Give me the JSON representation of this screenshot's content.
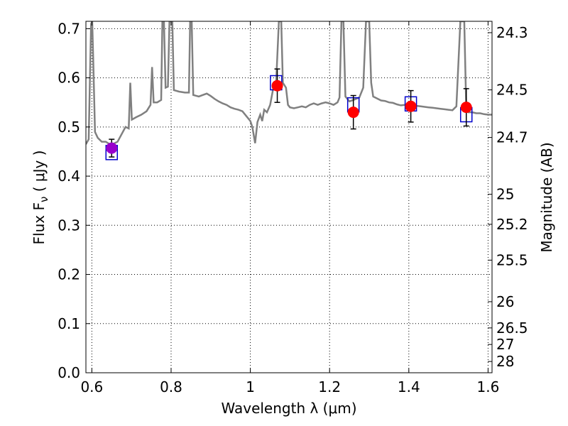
{
  "chart_data": {
    "type": "scatter",
    "xlabel": "Wavelength  λ (μm)",
    "ylabel": "Flux  F",
    "ylabel_sub": "ν",
    "ylabel_unit": "  ( μJy )",
    "ylabel_right": "Magnitude (AB)",
    "xlim": [
      0.585,
      1.61
    ],
    "ylim": [
      0.0,
      0.715
    ],
    "x_ticks": [
      {
        "value": 0.6,
        "label": "0.6"
      },
      {
        "value": 0.8,
        "label": "0.8"
      },
      {
        "value": 1.0,
        "label": "1"
      },
      {
        "value": 1.2,
        "label": "1.2"
      },
      {
        "value": 1.4,
        "label": "1.4"
      },
      {
        "value": 1.6,
        "label": "1.6"
      }
    ],
    "y_ticks": [
      {
        "value": 0.0,
        "label": "0.0"
      },
      {
        "value": 0.1,
        "label": "0.1"
      },
      {
        "value": 0.2,
        "label": "0.2"
      },
      {
        "value": 0.3,
        "label": "0.3"
      },
      {
        "value": 0.4,
        "label": "0.4"
      },
      {
        "value": 0.5,
        "label": "0.5"
      },
      {
        "value": 0.6,
        "label": "0.6"
      },
      {
        "value": 0.7,
        "label": "0.7"
      }
    ],
    "right_ticks": [
      {
        "value": 24.3,
        "label": "24.3"
      },
      {
        "value": 24.5,
        "label": "24.5"
      },
      {
        "value": 24.7,
        "label": "24.7"
      },
      {
        "value": 25.0,
        "label": "25"
      },
      {
        "value": 25.2,
        "label": "25.2"
      },
      {
        "value": 25.5,
        "label": "25.5"
      },
      {
        "value": 26.0,
        "label": "26"
      },
      {
        "value": 26.5,
        "label": "26.5"
      },
      {
        "value": 27.0,
        "label": "27"
      },
      {
        "value": 28.0,
        "label": "28"
      }
    ],
    "grid": true,
    "colors": {
      "model": "#808080",
      "observed": "#ff0000",
      "observed_first": "#9900cc",
      "model_box": "#0000cc",
      "errorbar": "#000000"
    },
    "model_spectrum": [
      [
        0.585,
        0.465
      ],
      [
        0.592,
        0.475
      ],
      [
        0.598,
        0.71
      ],
      [
        0.601,
        0.715
      ],
      [
        0.604,
        0.62
      ],
      [
        0.608,
        0.49
      ],
      [
        0.615,
        0.478
      ],
      [
        0.625,
        0.47
      ],
      [
        0.635,
        0.47
      ],
      [
        0.645,
        0.465
      ],
      [
        0.655,
        0.466
      ],
      [
        0.665,
        0.47
      ],
      [
        0.675,
        0.485
      ],
      [
        0.685,
        0.5
      ],
      [
        0.693,
        0.497
      ],
      [
        0.697,
        0.59
      ],
      [
        0.701,
        0.515
      ],
      [
        0.712,
        0.52
      ],
      [
        0.725,
        0.525
      ],
      [
        0.738,
        0.532
      ],
      [
        0.748,
        0.545
      ],
      [
        0.752,
        0.622
      ],
      [
        0.756,
        0.55
      ],
      [
        0.765,
        0.55
      ],
      [
        0.775,
        0.555
      ],
      [
        0.778,
        0.715
      ],
      [
        0.782,
        0.715
      ],
      [
        0.786,
        0.58
      ],
      [
        0.792,
        0.582
      ],
      [
        0.796,
        0.715
      ],
      [
        0.803,
        0.715
      ],
      [
        0.807,
        0.575
      ],
      [
        0.82,
        0.572
      ],
      [
        0.835,
        0.57
      ],
      [
        0.845,
        0.57
      ],
      [
        0.848,
        0.715
      ],
      [
        0.852,
        0.715
      ],
      [
        0.856,
        0.565
      ],
      [
        0.87,
        0.562
      ],
      [
        0.88,
        0.565
      ],
      [
        0.89,
        0.568
      ],
      [
        0.9,
        0.563
      ],
      [
        0.91,
        0.557
      ],
      [
        0.92,
        0.552
      ],
      [
        0.93,
        0.548
      ],
      [
        0.94,
        0.545
      ],
      [
        0.95,
        0.54
      ],
      [
        0.96,
        0.537
      ],
      [
        0.97,
        0.535
      ],
      [
        0.98,
        0.532
      ],
      [
        0.99,
        0.522
      ],
      [
        1.0,
        0.512
      ],
      [
        1.005,
        0.5
      ],
      [
        1.012,
        0.467
      ],
      [
        1.018,
        0.51
      ],
      [
        1.025,
        0.525
      ],
      [
        1.03,
        0.512
      ],
      [
        1.035,
        0.535
      ],
      [
        1.042,
        0.53
      ],
      [
        1.05,
        0.545
      ],
      [
        1.058,
        0.58
      ],
      [
        1.065,
        0.59
      ],
      [
        1.072,
        0.715
      ],
      [
        1.078,
        0.715
      ],
      [
        1.082,
        0.59
      ],
      [
        1.09,
        0.58
      ],
      [
        1.095,
        0.545
      ],
      [
        1.1,
        0.54
      ],
      [
        1.11,
        0.538
      ],
      [
        1.12,
        0.54
      ],
      [
        1.13,
        0.542
      ],
      [
        1.14,
        0.54
      ],
      [
        1.15,
        0.545
      ],
      [
        1.16,
        0.548
      ],
      [
        1.17,
        0.545
      ],
      [
        1.18,
        0.548
      ],
      [
        1.19,
        0.55
      ],
      [
        1.2,
        0.548
      ],
      [
        1.21,
        0.545
      ],
      [
        1.22,
        0.55
      ],
      [
        1.225,
        0.56
      ],
      [
        1.23,
        0.715
      ],
      [
        1.235,
        0.715
      ],
      [
        1.24,
        0.562
      ],
      [
        1.25,
        0.552
      ],
      [
        1.26,
        0.555
      ],
      [
        1.275,
        0.56
      ],
      [
        1.285,
        0.58
      ],
      [
        1.292,
        0.715
      ],
      [
        1.3,
        0.715
      ],
      [
        1.305,
        0.59
      ],
      [
        1.31,
        0.562
      ],
      [
        1.32,
        0.558
      ],
      [
        1.33,
        0.554
      ],
      [
        1.34,
        0.553
      ],
      [
        1.35,
        0.55
      ],
      [
        1.36,
        0.549
      ],
      [
        1.37,
        0.546
      ],
      [
        1.38,
        0.544
      ],
      [
        1.39,
        0.545
      ],
      [
        1.4,
        0.546
      ],
      [
        1.41,
        0.545
      ],
      [
        1.42,
        0.543
      ],
      [
        1.43,
        0.542
      ],
      [
        1.44,
        0.541
      ],
      [
        1.45,
        0.54
      ],
      [
        1.46,
        0.539
      ],
      [
        1.47,
        0.538
      ],
      [
        1.48,
        0.537
      ],
      [
        1.49,
        0.536
      ],
      [
        1.5,
        0.535
      ],
      [
        1.51,
        0.534
      ],
      [
        1.52,
        0.542
      ],
      [
        1.53,
        0.715
      ],
      [
        1.54,
        0.715
      ],
      [
        1.545,
        0.535
      ],
      [
        1.55,
        0.53
      ],
      [
        1.56,
        0.53
      ],
      [
        1.57,
        0.528
      ],
      [
        1.58,
        0.528
      ],
      [
        1.59,
        0.526
      ],
      [
        1.6,
        0.525
      ],
      [
        1.61,
        0.525
      ]
    ],
    "model_points": [
      {
        "x": 0.65,
        "y": 0.448
      },
      {
        "x": 1.065,
        "y": 0.59
      },
      {
        "x": 1.26,
        "y": 0.545
      },
      {
        "x": 1.405,
        "y": 0.547
      },
      {
        "x": 1.545,
        "y": 0.525
      }
    ],
    "observed_points": [
      {
        "x": 0.65,
        "y": 0.457,
        "err": 0.018
      },
      {
        "x": 1.068,
        "y": 0.584,
        "err": 0.034
      },
      {
        "x": 1.26,
        "y": 0.53,
        "err": 0.034
      },
      {
        "x": 1.405,
        "y": 0.542,
        "err": 0.032
      },
      {
        "x": 1.545,
        "y": 0.54,
        "err": 0.038
      }
    ]
  }
}
